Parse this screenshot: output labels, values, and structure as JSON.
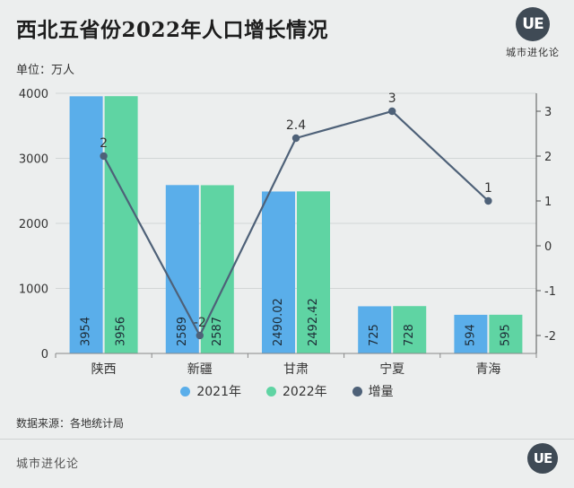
{
  "title": "西北五省份2022年人口增长情况",
  "unit_label": "单位：万人",
  "brand": {
    "logo_text": "UE",
    "name": "城市进化论"
  },
  "source": "数据来源：各地统计局",
  "footer": {
    "brand": "城市进化论",
    "logo_text": "UE"
  },
  "colors": {
    "bar_2021": "#5aaeea",
    "bar_2022": "#5fd4a3",
    "line": "#4e6178",
    "grid": "#d2d6d6",
    "axis_text": "#333333"
  },
  "chart_data": {
    "type": "bar",
    "categories": [
      "陕西",
      "新疆",
      "甘肃",
      "宁夏",
      "青海"
    ],
    "series": [
      {
        "name": "2021年",
        "type": "bar",
        "axis": "left",
        "values": [
          3954,
          2589,
          2490.02,
          725,
          594
        ],
        "labels": [
          "3954",
          "2589",
          "2490.02",
          "725",
          "594"
        ]
      },
      {
        "name": "2022年",
        "type": "bar",
        "axis": "left",
        "values": [
          3956,
          2587,
          2492.42,
          728,
          595
        ],
        "labels": [
          "3956",
          "2587",
          "2492.42",
          "728",
          "595"
        ]
      },
      {
        "name": "增量",
        "type": "line",
        "axis": "right",
        "values": [
          2,
          -2,
          2.4,
          3,
          1
        ],
        "labels": [
          "2",
          "-2",
          "2.4",
          "3",
          "1"
        ]
      }
    ],
    "y_left": {
      "min": 0,
      "max": 4000,
      "ticks": [
        0,
        1000,
        2000,
        3000,
        4000
      ]
    },
    "y_right": {
      "min": -2.4,
      "max": 3.4,
      "ticks": [
        -2,
        -1,
        0,
        1,
        2,
        3
      ]
    },
    "grid": true,
    "legend_position": "bottom"
  }
}
